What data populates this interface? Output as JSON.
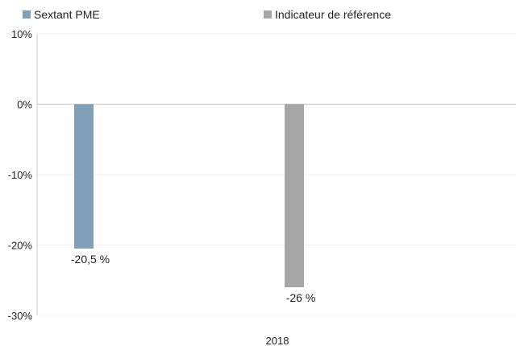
{
  "chart_data": {
    "type": "bar",
    "categories": [
      "2018"
    ],
    "series": [
      {
        "name": "Sextant PME",
        "values": [
          -20.5
        ],
        "label": "-20,5 %",
        "color": "#829fb8"
      },
      {
        "name": "Indicateur de référence",
        "values": [
          -26
        ],
        "label": "-26 %",
        "color": "#a6a6a6"
      }
    ],
    "ylim": [
      -30,
      10
    ],
    "yticks": [
      10,
      0,
      -10,
      -20,
      -30
    ],
    "ytick_labels": [
      "10%",
      "0%",
      "-10%",
      "-20%",
      "-30%"
    ],
    "xlabel": "",
    "ylabel": "",
    "legend_position": "top-left",
    "grid": true
  }
}
